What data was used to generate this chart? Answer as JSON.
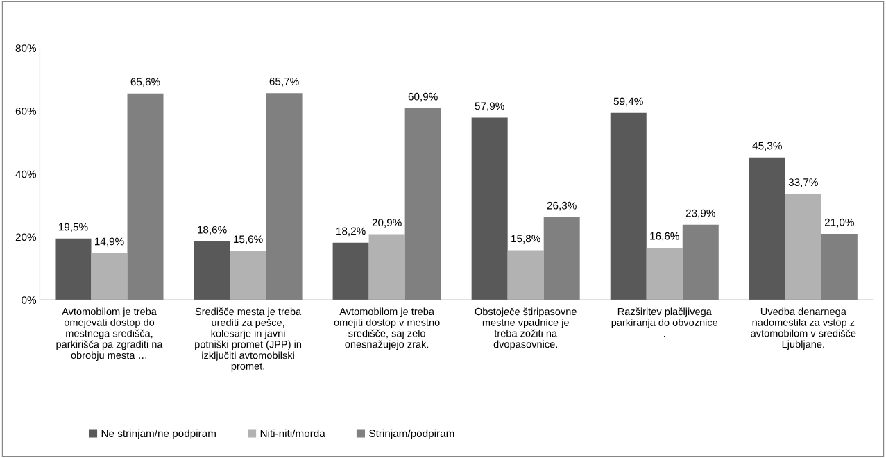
{
  "chart_data": {
    "type": "bar",
    "categories": [
      "Avtomobilom je treba\nomejevati dostop do\nmestnega središča,\nparkirišča pa zgraditi na\nobrobju mesta …",
      "Središče mesta je treba\nurediti za pešce,\nkolesarje in javni\npotniški promet (JPP) in\nizključiti avtomobilski\npromet.",
      "Avtomobilom je treba\nomejiti dostop v mestno\nsredišče, saj zelo\nonesnažujejo zrak.",
      "Obstoječe štiripasovne\nmestne vpadnice je\ntreba zožiti na\ndvopasovnice.",
      "Razširitev plačljivega\nparkiranja do obvoznice\n.",
      "Uvedba denarnega\nnadomestila za vstop z\navtomobilom v središče\nLjubljane."
    ],
    "series": [
      {
        "name": "Ne strinjam/ne podpiram",
        "color": "#595959",
        "values": [
          19.5,
          18.6,
          18.2,
          57.9,
          59.4,
          45.3
        ],
        "value_labels": [
          "19,5%",
          "18,6%",
          "18,2%",
          "57,9%",
          "59,4%",
          "45,3%"
        ]
      },
      {
        "name": "Niti-niti/morda",
        "color": "#b2b2b2",
        "values": [
          14.9,
          15.6,
          20.9,
          15.8,
          16.6,
          33.7
        ],
        "value_labels": [
          "14,9%",
          "15,6%",
          "20,9%",
          "15,8%",
          "16,6%",
          "33,7%"
        ]
      },
      {
        "name": "Strinjam/podpiram",
        "color": "#808080",
        "values": [
          65.6,
          65.7,
          60.9,
          26.3,
          23.9,
          21.0
        ],
        "value_labels": [
          "65,6%",
          "65,7%",
          "60,9%",
          "26,3%",
          "23,9%",
          "21,0%"
        ]
      }
    ],
    "ylim": [
      0,
      80
    ],
    "yticks": [
      {
        "value": 0,
        "label": "0%"
      },
      {
        "value": 20,
        "label": "20%"
      },
      {
        "value": 40,
        "label": "40%"
      },
      {
        "value": 60,
        "label": "60%"
      },
      {
        "value": 80,
        "label": "80%"
      }
    ],
    "grid": false,
    "legend": "bottom left"
  }
}
